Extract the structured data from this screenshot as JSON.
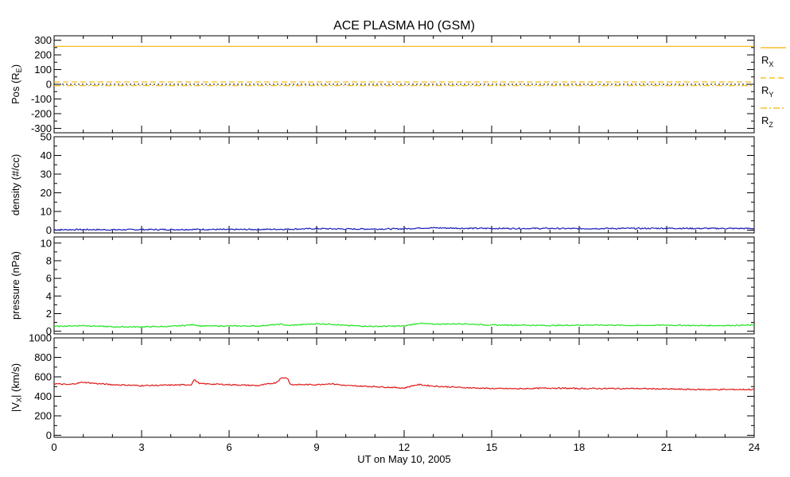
{
  "chart_data": {
    "title": "ACE PLASMA H0 (GSM)",
    "type": "line",
    "xlabel": "UT on May 10, 2005",
    "xlim": [
      0,
      24
    ],
    "xticks": [
      0,
      3,
      6,
      9,
      12,
      15,
      18,
      21,
      24
    ],
    "xtick_labels": [
      "0",
      "3",
      "6",
      "9",
      "12",
      "15",
      "18",
      "21",
      "24"
    ],
    "colors": {
      "rx": "#f0b400",
      "ry": "#f0b400",
      "rz": "#f0b400",
      "density": "#1a1ab8",
      "pressure": "#1ee61e",
      "vx": "#e01818"
    },
    "panels": [
      {
        "id": "pos",
        "ylabel_main": "Pos (R",
        "ylabel_sub": "E",
        "ylabel_end": ")",
        "ylim": [
          -330,
          330
        ],
        "yticks": [
          -300,
          -200,
          -100,
          0,
          100,
          200,
          300
        ],
        "ytick_labels": [
          "-300",
          "-200",
          "-100",
          "0",
          "100",
          "200",
          "300"
        ],
        "zero_line": true,
        "series": [
          {
            "key": "rx",
            "style": "solid",
            "points": [
              [
                0,
                258
              ],
              [
                24,
                258
              ]
            ]
          },
          {
            "key": "ry",
            "style": "dash",
            "points": [
              [
                0,
                16
              ],
              [
                24,
                16
              ]
            ]
          },
          {
            "key": "rz",
            "style": "dashdot",
            "points": [
              [
                0,
                -9
              ],
              [
                24,
                -9
              ]
            ]
          }
        ],
        "legend": [
          {
            "key": "rx",
            "style": "solid",
            "main": "R",
            "sub": "X"
          },
          {
            "key": "ry",
            "style": "dash",
            "main": "R",
            "sub": "Y"
          },
          {
            "key": "rz",
            "style": "dashdot",
            "main": "R",
            "sub": "Z"
          }
        ]
      },
      {
        "id": "density",
        "ylabel_main": "density (#/cc)",
        "ylim": [
          -1.5,
          50
        ],
        "yticks": [
          0,
          10,
          20,
          30,
          40,
          50
        ],
        "ytick_labels": [
          "0",
          "10",
          "20",
          "30",
          "40",
          "50"
        ],
        "series": [
          {
            "key": "density",
            "style": "solid",
            "points": [
              [
                0,
                0.2
              ],
              [
                1,
                0.3
              ],
              [
                2,
                0.2
              ],
              [
                3,
                0.3
              ],
              [
                4,
                0.3
              ],
              [
                5,
                0.4
              ],
              [
                6,
                0.3
              ],
              [
                7,
                0.4
              ],
              [
                8,
                0.5
              ],
              [
                9,
                0.8
              ],
              [
                10,
                0.6
              ],
              [
                11,
                0.6
              ],
              [
                12,
                0.7
              ],
              [
                12.5,
                1.1
              ],
              [
                13,
                1.2
              ],
              [
                14,
                1.0
              ],
              [
                15,
                0.9
              ],
              [
                16,
                0.9
              ],
              [
                17,
                0.9
              ],
              [
                18,
                0.8
              ],
              [
                19,
                0.9
              ],
              [
                20,
                0.9
              ],
              [
                21,
                1.0
              ],
              [
                22,
                0.9
              ],
              [
                23,
                0.9
              ],
              [
                24,
                0.9
              ]
            ]
          }
        ]
      },
      {
        "id": "pressure",
        "ylabel_main": "pressure (nPa)",
        "ylim": [
          -0.3,
          10.7
        ],
        "yticks": [
          0,
          2,
          4,
          6,
          8,
          10
        ],
        "ytick_labels": [
          "0",
          "2",
          "4",
          "6",
          "8",
          "10"
        ],
        "series": [
          {
            "key": "pressure",
            "style": "solid",
            "points": [
              [
                0,
                0.55
              ],
              [
                1,
                0.65
              ],
              [
                2,
                0.5
              ],
              [
                3,
                0.5
              ],
              [
                4,
                0.55
              ],
              [
                4.8,
                0.75
              ],
              [
                5,
                0.6
              ],
              [
                6,
                0.6
              ],
              [
                7,
                0.6
              ],
              [
                7.8,
                0.8
              ],
              [
                8,
                0.65
              ],
              [
                9,
                0.85
              ],
              [
                9.5,
                0.8
              ],
              [
                10,
                0.65
              ],
              [
                11,
                0.55
              ],
              [
                12,
                0.6
              ],
              [
                12.5,
                0.9
              ],
              [
                13,
                0.8
              ],
              [
                14,
                0.85
              ],
              [
                15,
                0.7
              ],
              [
                16,
                0.7
              ],
              [
                17,
                0.65
              ],
              [
                18,
                0.7
              ],
              [
                19,
                0.7
              ],
              [
                20,
                0.65
              ],
              [
                21,
                0.7
              ],
              [
                22,
                0.65
              ],
              [
                23,
                0.65
              ],
              [
                24,
                0.7
              ]
            ]
          }
        ]
      },
      {
        "id": "vx",
        "ylabel_main": "|V",
        "ylabel_sub": "X",
        "ylabel_end": "| (km/s)",
        "ylim": [
          -20,
          1000
        ],
        "yticks": [
          0,
          200,
          400,
          600,
          800,
          1000
        ],
        "ytick_labels": [
          "0",
          "200",
          "400",
          "600",
          "800",
          "1000"
        ],
        "series": [
          {
            "key": "vx",
            "style": "solid",
            "points": [
              [
                0,
                530
              ],
              [
                0.5,
                520
              ],
              [
                1,
                545
              ],
              [
                1.5,
                530
              ],
              [
                2,
                520
              ],
              [
                3,
                510
              ],
              [
                4,
                515
              ],
              [
                4.7,
                520
              ],
              [
                4.8,
                570
              ],
              [
                5,
                530
              ],
              [
                6,
                520
              ],
              [
                6.5,
                515
              ],
              [
                7,
                510
              ],
              [
                7.6,
                540
              ],
              [
                7.8,
                590
              ],
              [
                8,
                590
              ],
              [
                8.1,
                520
              ],
              [
                9,
                520
              ],
              [
                9.5,
                530
              ],
              [
                10,
                510
              ],
              [
                11,
                500
              ],
              [
                11.7,
                490
              ],
              [
                12,
                485
              ],
              [
                12.3,
                510
              ],
              [
                12.5,
                520
              ],
              [
                13,
                505
              ],
              [
                14,
                490
              ],
              [
                14.5,
                485
              ],
              [
                15,
                480
              ],
              [
                16,
                478
              ],
              [
                17,
                485
              ],
              [
                18,
                480
              ],
              [
                19,
                480
              ],
              [
                20,
                480
              ],
              [
                21,
                475
              ],
              [
                22,
                470
              ],
              [
                23,
                470
              ],
              [
                24,
                470
              ]
            ]
          }
        ]
      }
    ]
  }
}
